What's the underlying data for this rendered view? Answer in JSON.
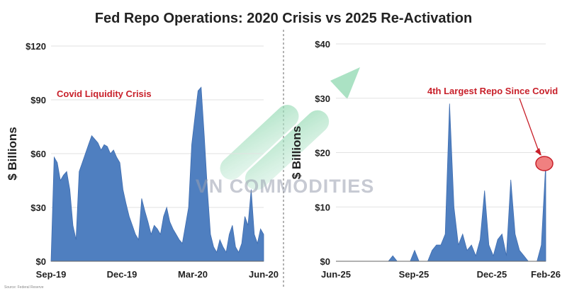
{
  "title": "Fed Repo Operations: 2020 Crisis vs 2025 Re-Activation",
  "watermark": "VN COMMODITIES",
  "source_note": "Source: Federal Reserve",
  "colors": {
    "bar": "#4f7fc0",
    "bar_stroke": "#3f6db0",
    "annotation": "#c8202a",
    "marker_fill": "#f08080",
    "arrow": "#8fd8b0",
    "grid": "#e2e2e2",
    "divider": "#999999",
    "text": "#222222"
  },
  "chart_data": [
    {
      "type": "area",
      "title": "",
      "ylabel": "$ Billions",
      "ylim": [
        0,
        120
      ],
      "y_ticks": [
        "$0",
        "$30",
        "$60",
        "$90",
        "$120"
      ],
      "y_tick_values": [
        0,
        30,
        60,
        90,
        120
      ],
      "x_ticks": [
        "Sep-19",
        "Dec-19",
        "Mar-20",
        "Jun-20"
      ],
      "x_tick_positions": [
        0,
        13,
        26,
        39
      ],
      "annotation": {
        "text": "Covid Liquidity Crisis"
      },
      "series": [
        {
          "values": [
            0,
            58,
            55,
            45,
            48,
            50,
            40,
            20,
            12,
            50,
            55,
            60,
            65,
            70,
            68,
            66,
            62,
            65,
            64,
            60,
            62,
            58,
            55,
            40,
            32,
            25,
            20,
            15,
            12,
            35,
            28,
            22,
            15,
            20,
            18,
            15,
            25,
            30,
            22,
            18,
            15,
            12,
            10,
            20,
            30,
            65,
            80,
            95,
            97,
            70,
            40,
            15,
            8,
            5,
            12,
            8,
            5,
            15,
            20,
            8,
            5,
            10,
            25,
            20,
            40,
            15,
            10,
            18,
            15
          ]
        }
      ]
    },
    {
      "type": "area",
      "title": "",
      "ylabel": "$ Billions",
      "ylim": [
        0,
        40
      ],
      "y_ticks": [
        "$0",
        "$10",
        "$20",
        "$30",
        "$40"
      ],
      "y_tick_values": [
        0,
        10,
        20,
        30,
        40
      ],
      "x_ticks": [
        "Jun-25",
        "Sep-25",
        "Dec-25",
        "Feb-26"
      ],
      "x_tick_positions": [
        0,
        13,
        26,
        35
      ],
      "annotation": {
        "text": "4th Largest Repo Since Covid"
      },
      "series": [
        {
          "values": [
            0,
            0,
            0,
            0,
            0,
            0,
            0,
            0,
            0,
            0,
            0,
            0,
            0,
            1,
            0,
            0,
            0,
            0,
            2,
            0,
            0,
            0,
            2,
            3,
            3,
            5,
            29,
            10,
            3,
            5,
            2,
            3,
            1,
            4,
            13,
            3,
            1,
            4,
            5,
            1,
            15,
            5,
            2,
            1,
            0,
            0,
            0,
            3,
            18
          ]
        }
      ]
    }
  ]
}
